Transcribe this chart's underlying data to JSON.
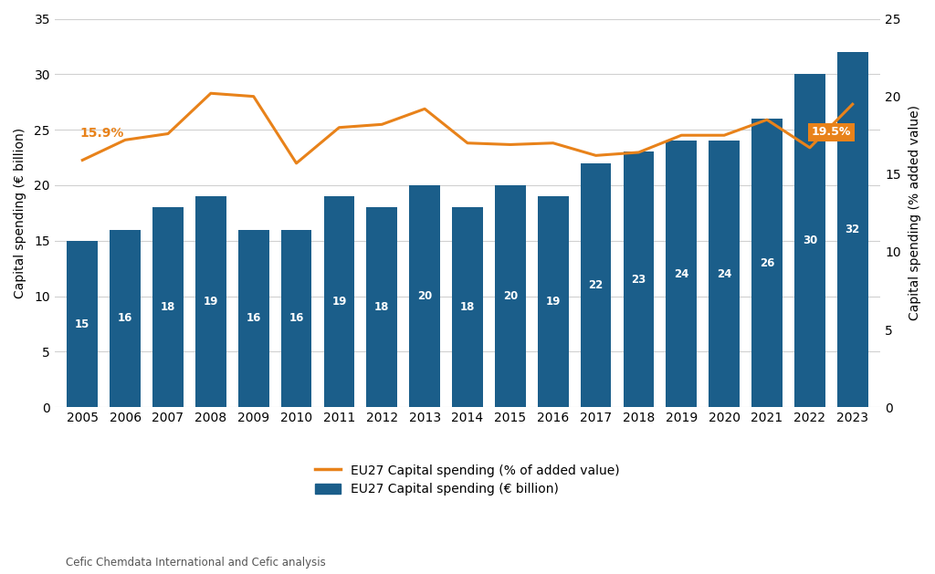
{
  "years": [
    2005,
    2006,
    2007,
    2008,
    2009,
    2010,
    2011,
    2012,
    2013,
    2014,
    2015,
    2016,
    2017,
    2018,
    2019,
    2020,
    2021,
    2022,
    2023
  ],
  "bar_values": [
    15,
    16,
    18,
    19,
    16,
    16,
    19,
    18,
    20,
    18,
    20,
    19,
    22,
    23,
    24,
    24,
    26,
    30,
    32
  ],
  "line_pct": [
    15.9,
    17.2,
    17.6,
    20.2,
    20.0,
    15.7,
    18.0,
    18.2,
    19.2,
    17.0,
    16.9,
    17.0,
    16.2,
    16.4,
    17.5,
    17.5,
    18.5,
    16.7,
    19.5
  ],
  "bar_color": "#1B5E8A",
  "line_color": "#E8821A",
  "bar_label_color": "#ffffff",
  "ylim_left": [
    0,
    35
  ],
  "ylim_right": [
    0,
    25
  ],
  "ylabel_left": "Capital spending (€ billion)",
  "ylabel_right": "Capital spending (% added value)",
  "legend_line": "EU27 Capital spending (% of added value)",
  "legend_bar": "EU27 Capital spending (€ billion)",
  "source_text": "Cefic Chemdata International and Cefic analysis",
  "first_label": "15.9%",
  "last_label": "19.5%",
  "background_color": "#ffffff",
  "grid_color": "#d0d0d0"
}
